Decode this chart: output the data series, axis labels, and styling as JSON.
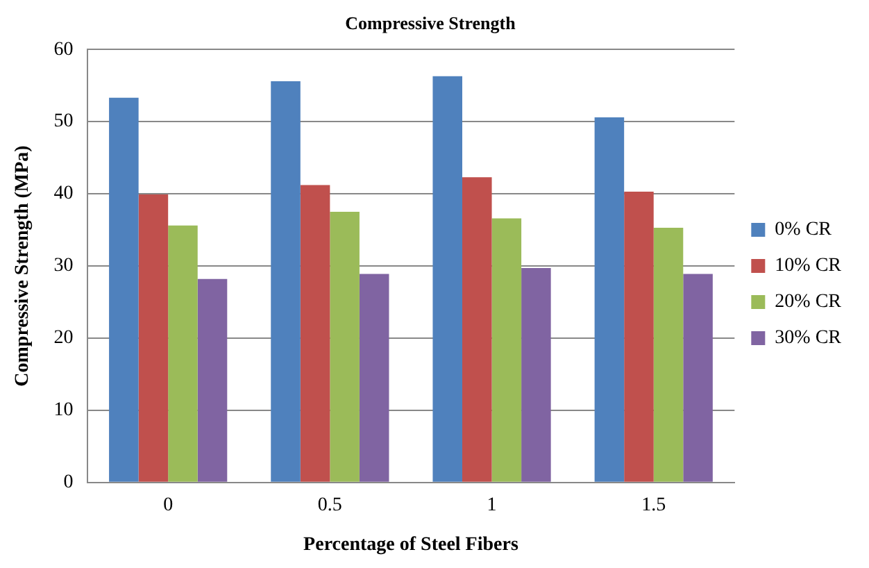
{
  "chart_data": {
    "type": "bar",
    "title": "Compressive Strength",
    "xlabel": "Percentage of Steel Fibers",
    "ylabel": "Compressive Strength (MPa)",
    "categories": [
      "0",
      "0.5",
      "1",
      "1.5"
    ],
    "series": [
      {
        "name": "0% CR",
        "color": "#4f81bd",
        "values": [
          53.3,
          55.6,
          56.3,
          50.6
        ]
      },
      {
        "name": "10% CR",
        "color": "#c0504d",
        "values": [
          39.9,
          41.2,
          42.3,
          40.3
        ]
      },
      {
        "name": "20% CR",
        "color": "#9bbb59",
        "values": [
          35.6,
          37.5,
          36.6,
          35.3
        ]
      },
      {
        "name": "30% CR",
        "color": "#8064a2",
        "values": [
          28.2,
          28.9,
          29.7,
          28.9
        ]
      }
    ],
    "ylim": [
      0,
      60
    ],
    "yticks": [
      0,
      10,
      20,
      30,
      40,
      50,
      60
    ],
    "grid": "y",
    "legend": "right"
  }
}
